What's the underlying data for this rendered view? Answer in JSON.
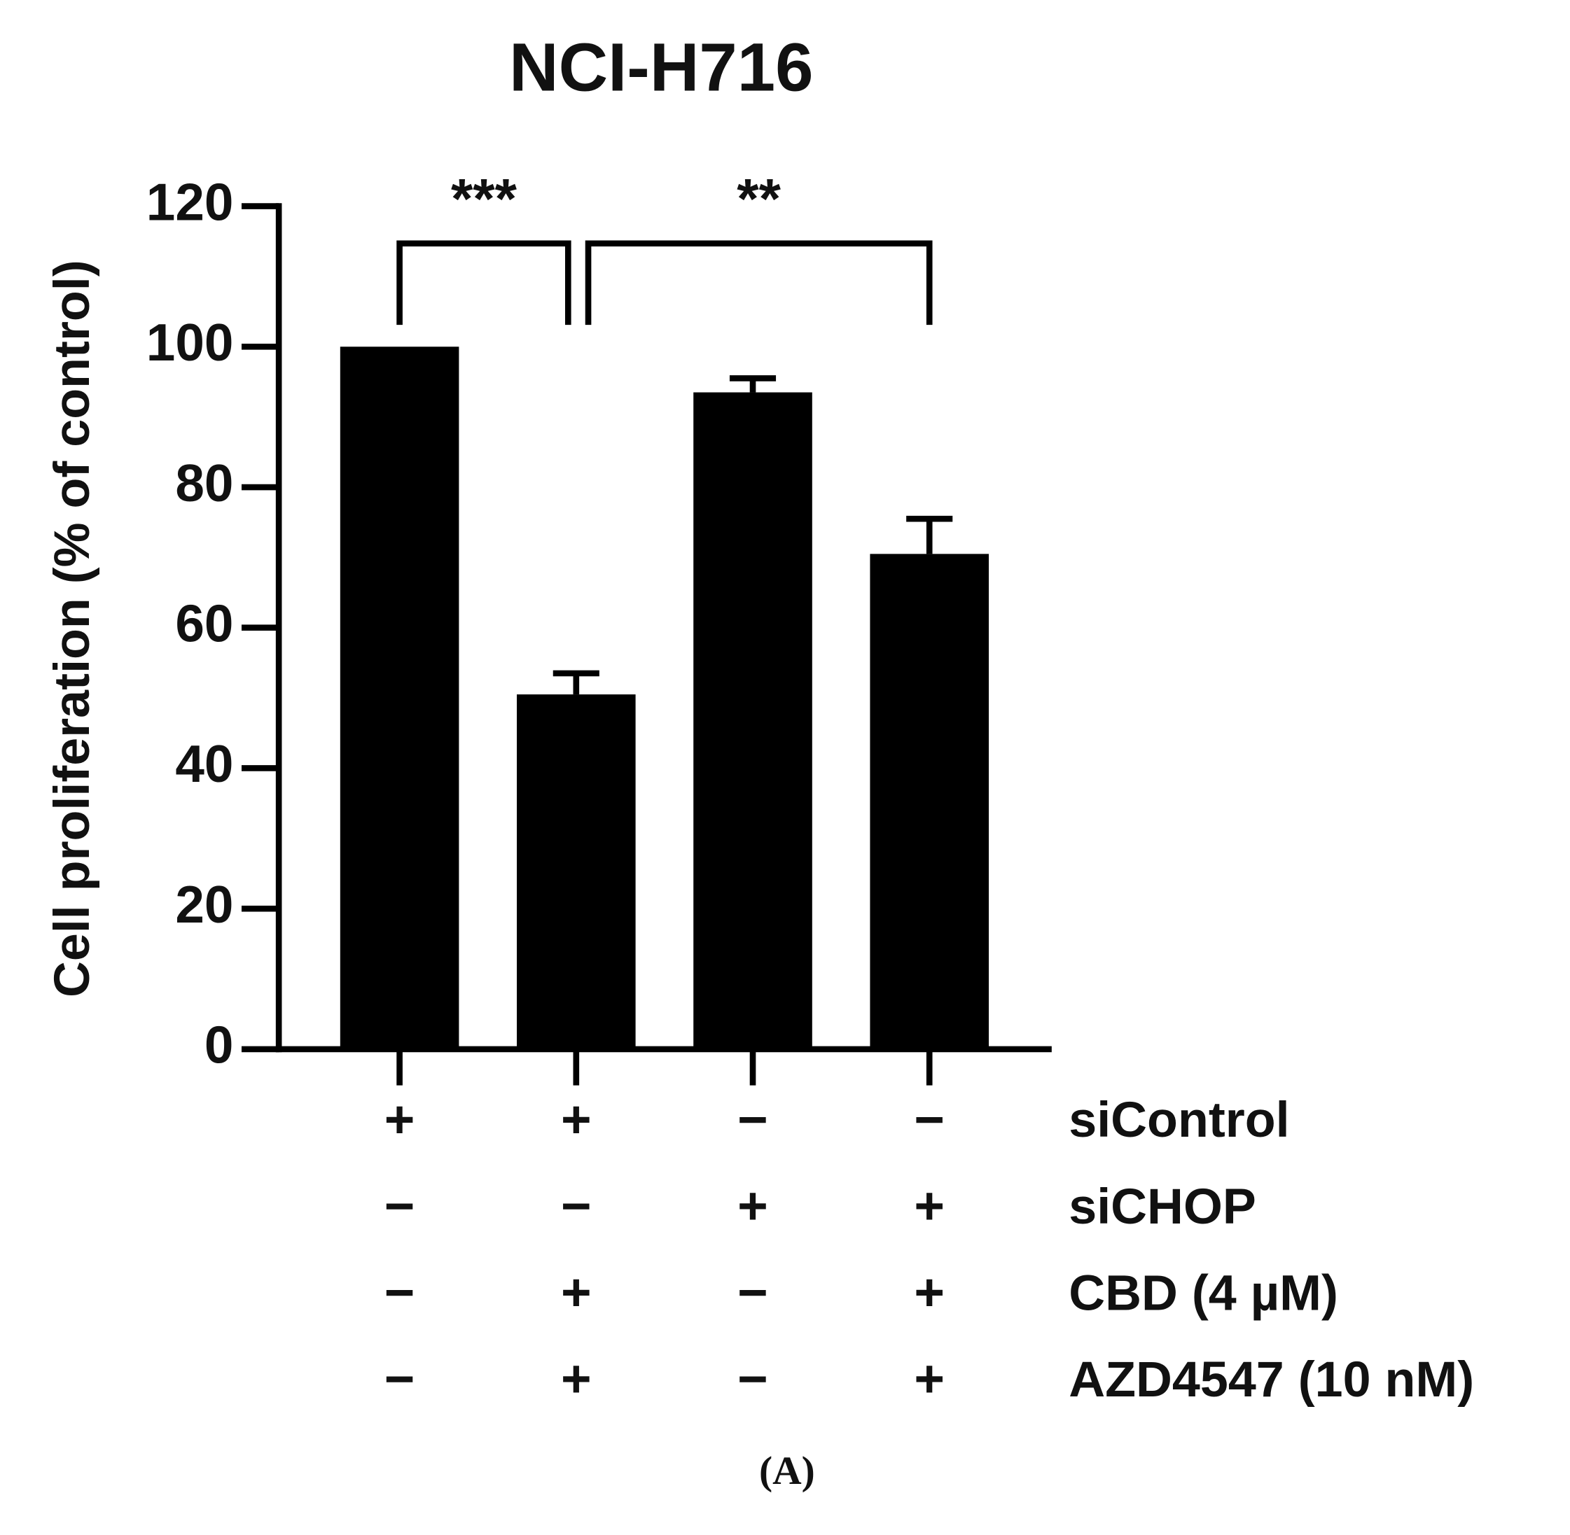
{
  "chart_data": {
    "type": "bar",
    "title": "NCI-H716",
    "y_label": "Cell proliferation (% of control)",
    "categories": [
      null,
      null,
      null,
      null
    ],
    "values": [
      100,
      50.5,
      93.5,
      70.5
    ],
    "errors": [
      null,
      3,
      2,
      5
    ],
    "color": "#000000",
    "ylim": [
      0,
      120
    ],
    "yticks": [
      0,
      20,
      40,
      60,
      80,
      100,
      120
    ],
    "annotations": [
      "***",
      "**"
    ],
    "conditions": [
      {
        "name": "siControl",
        "signs": [
          "+",
          "+",
          "−",
          "−"
        ]
      },
      {
        "name": "siCHOP",
        "signs": [
          "−",
          "−",
          "+",
          "+"
        ]
      },
      {
        "name": "CBD (4 µM)",
        "signs": [
          "−",
          "+",
          "−",
          "+"
        ]
      },
      {
        "name": "AZD4547 (10 nM)",
        "signs": [
          "−",
          "+",
          "−",
          "+"
        ]
      }
    ],
    "caption": "(A)"
  }
}
